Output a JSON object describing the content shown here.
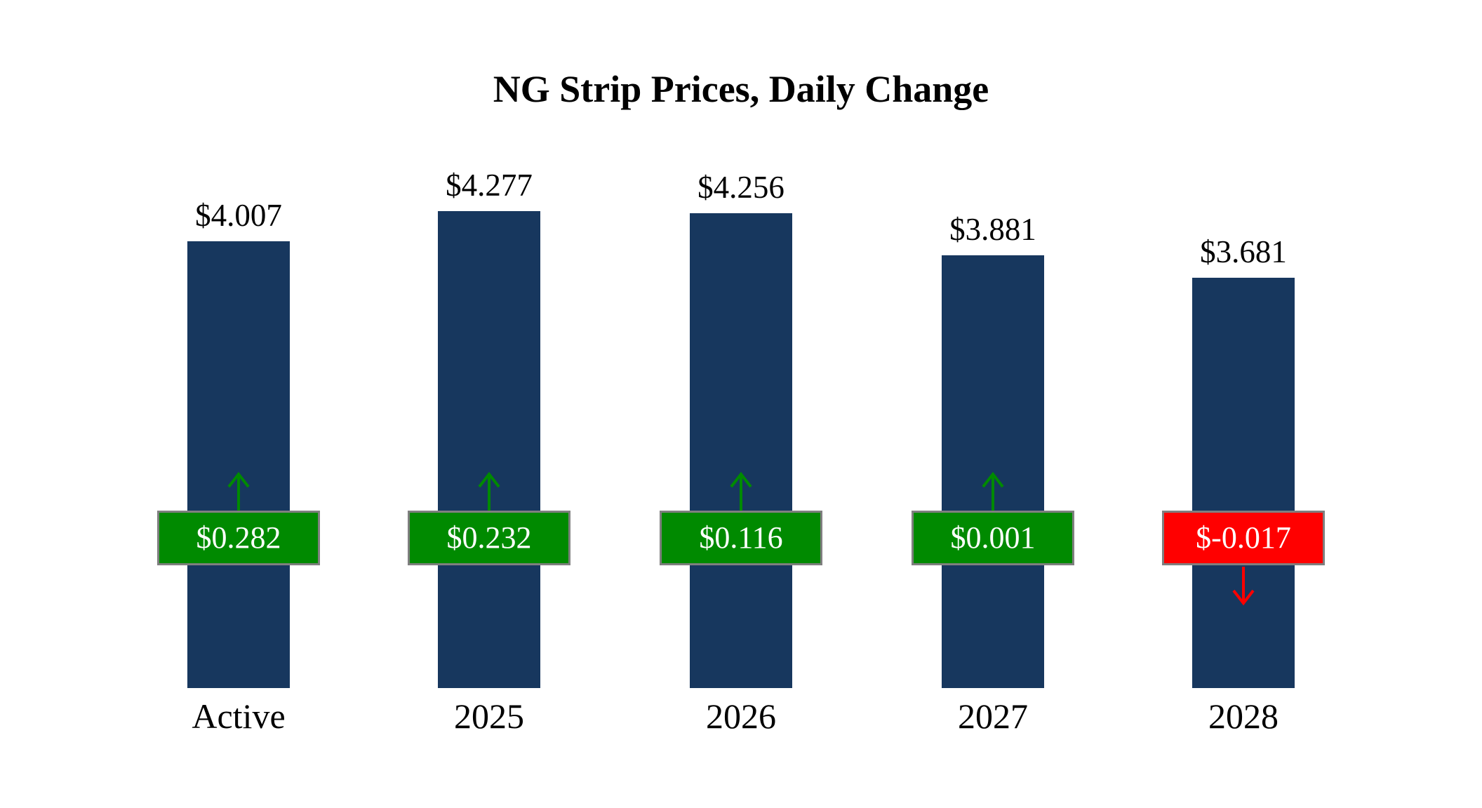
{
  "title": "NG Strip Prices, Daily Change",
  "chart_data": {
    "type": "bar",
    "title": "NG Strip Prices, Daily Change",
    "xlabel": "",
    "ylabel": "",
    "categories": [
      "Active",
      "2025",
      "2026",
      "2027",
      "2028"
    ],
    "values": [
      4.007,
      4.277,
      4.256,
      3.881,
      3.681
    ],
    "value_labels": [
      "$4.007",
      "$4.277",
      "$4.256",
      "$3.881",
      "$3.681"
    ],
    "changes": [
      0.282,
      0.232,
      0.116,
      0.001,
      -0.017
    ],
    "change_labels": [
      "$0.282",
      "$0.232",
      "$0.116",
      "$0.001",
      "$-0.017"
    ],
    "ylim": [
      0,
      4.5
    ],
    "grid": "off",
    "legend": "none",
    "bar_color": "#17375E",
    "up_color": "#008A00",
    "down_color": "#FF0000",
    "badge_border_color": "#7F7F7F",
    "annotations": "green badge with up arrow = positive daily change; red badge with down arrow = negative daily change"
  }
}
